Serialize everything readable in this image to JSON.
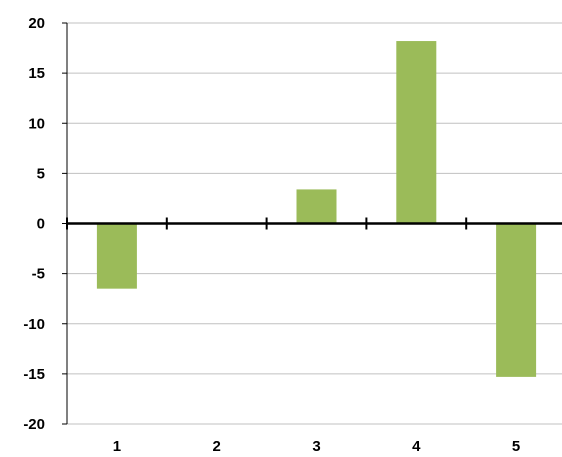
{
  "chart_data": {
    "type": "bar",
    "categories": [
      "1",
      "2",
      "3",
      "4",
      "5"
    ],
    "series": [
      {
        "values": [
          -6.5,
          0,
          3.4,
          18.2,
          -15.3
        ]
      }
    ],
    "ylim": [
      -20,
      20
    ],
    "yticks": [
      20,
      15,
      10,
      5,
      0,
      -5,
      -10,
      -15,
      -20
    ],
    "ytick_labels": [
      "20",
      "15",
      "10",
      "5",
      "0",
      "-5",
      "-10",
      "-15",
      "-20"
    ],
    "title": "",
    "xlabel": "",
    "ylabel": "",
    "grid": true,
    "legend": "none",
    "colors": {
      "bar": "#9bbb59",
      "grid": "#c0c0c0",
      "axis": "#000000",
      "text": "#000000"
    }
  }
}
